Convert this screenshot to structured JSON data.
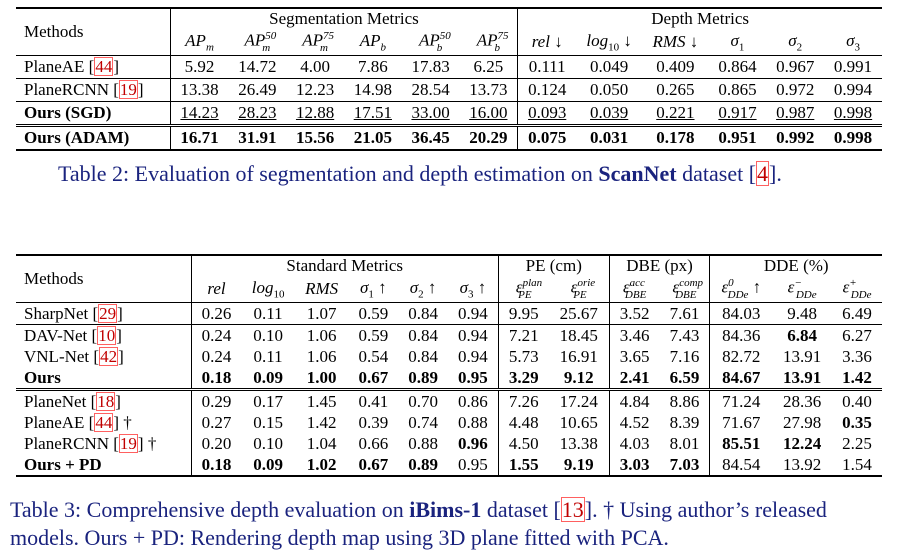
{
  "table2": {
    "head": {
      "methods": "Methods",
      "group_seg": "Segmentation Metrics",
      "group_depth": "Depth Metrics",
      "cols": [
        "AP_m",
        "AP^50_m",
        "AP^75_m",
        "AP_b",
        "AP^50_b",
        "AP^75_b",
        "rel ↓",
        "log10 ↓",
        "RMS ↓",
        "σ1",
        "σ2",
        "σ3"
      ]
    },
    "rows": [
      {
        "method": "PlaneAE [44]",
        "values": [
          "5.92",
          "14.72",
          "4.00",
          "7.86",
          "17.83",
          "6.25",
          "0.111",
          "0.049",
          "0.409",
          "0.864",
          "0.967",
          "0.991"
        ]
      },
      {
        "method": "PlaneRCNN [19]",
        "values": [
          "13.38",
          "26.49",
          "12.23",
          "14.98",
          "28.54",
          "13.73",
          "0.124",
          "0.050",
          "0.265",
          "0.865",
          "0.972",
          "0.994"
        ]
      },
      {
        "method": "Ours (SGD)",
        "values": [
          "14.23",
          "28.23",
          "12.88",
          "17.51",
          "33.00",
          "16.00",
          "0.093",
          "0.039",
          "0.221",
          "0.917",
          "0.987",
          "0.998"
        ]
      },
      {
        "method": "Ours (ADAM)",
        "values": [
          "16.71",
          "31.91",
          "15.56",
          "21.05",
          "36.45",
          "20.29",
          "0.075",
          "0.031",
          "0.178",
          "0.951",
          "0.992",
          "0.998"
        ]
      }
    ],
    "caption": {
      "prefix": "Table 2: Evaluation of segmentation and depth estimation on ",
      "dataset": "ScanNet",
      "suffix_pre": " dataset [",
      "cite": "4",
      "suffix_post": "]."
    }
  },
  "table3": {
    "head": {
      "methods": "Methods",
      "group_std": "Standard Metrics",
      "group_pe": "PE (cm)",
      "group_dbe": "DBE (px)",
      "group_dde": "DDE (%)",
      "cols": [
        "rel",
        "log10",
        "RMS",
        "σ1 ↑",
        "σ2 ↑",
        "σ3 ↑",
        "ε_PE^plan",
        "ε_PE^orie",
        "ε_DBE^acc",
        "ε_DBE^comp",
        "ε_DDe^0 ↑",
        "ε_DDe^-",
        "ε_DDe^+"
      ]
    },
    "rows": [
      {
        "method": "SharpNet [29]",
        "values": [
          "0.26",
          "0.11",
          "1.07",
          "0.59",
          "0.84",
          "0.94",
          "9.95",
          "25.67",
          "3.52",
          "7.61",
          "84.03",
          "9.48",
          "6.49"
        ]
      },
      {
        "method": "DAV-Net [10]",
        "values": [
          "0.24",
          "0.10",
          "1.06",
          "0.59",
          "0.84",
          "0.94",
          "7.21",
          "18.45",
          "3.46",
          "7.43",
          "84.36",
          "6.84",
          "6.27"
        ]
      },
      {
        "method": "VNL-Net [42]",
        "values": [
          "0.24",
          "0.11",
          "1.06",
          "0.54",
          "0.84",
          "0.94",
          "5.73",
          "16.91",
          "3.65",
          "7.16",
          "82.72",
          "13.91",
          "3.36"
        ]
      },
      {
        "method": "Ours",
        "values": [
          "0.18",
          "0.09",
          "1.00",
          "0.67",
          "0.89",
          "0.95",
          "3.29",
          "9.12",
          "2.41",
          "6.59",
          "84.67",
          "13.91",
          "1.42"
        ]
      },
      {
        "method": "PlaneNet [18]",
        "values": [
          "0.29",
          "0.17",
          "1.45",
          "0.41",
          "0.70",
          "0.86",
          "7.26",
          "17.24",
          "4.84",
          "8.86",
          "71.24",
          "28.36",
          "0.40"
        ]
      },
      {
        "method": "PlaneAE [44] †",
        "values": [
          "0.27",
          "0.15",
          "1.42",
          "0.39",
          "0.74",
          "0.88",
          "4.48",
          "10.65",
          "4.52",
          "8.39",
          "71.67",
          "27.98",
          "0.35"
        ]
      },
      {
        "method": "PlaneRCNN [19] †",
        "values": [
          "0.20",
          "0.10",
          "1.04",
          "0.66",
          "0.88",
          "0.96",
          "4.50",
          "13.38",
          "4.03",
          "8.01",
          "85.51",
          "12.24",
          "2.25"
        ]
      },
      {
        "method": "Ours + PD",
        "values": [
          "0.18",
          "0.09",
          "1.02",
          "0.67",
          "0.89",
          "0.95",
          "1.55",
          "9.19",
          "3.03",
          "7.03",
          "84.54",
          "13.92",
          "1.54"
        ]
      }
    ],
    "caption": {
      "prefix": "Table 3: Comprehensive depth evaluation on ",
      "dataset": "iBims-1",
      "mid_pre": " dataset [",
      "cite": "13",
      "mid_post": "]. † Using author’s released",
      "line2": "models. Ours + PD: Rendering depth map using 3D plane fitted with PCA."
    }
  }
}
